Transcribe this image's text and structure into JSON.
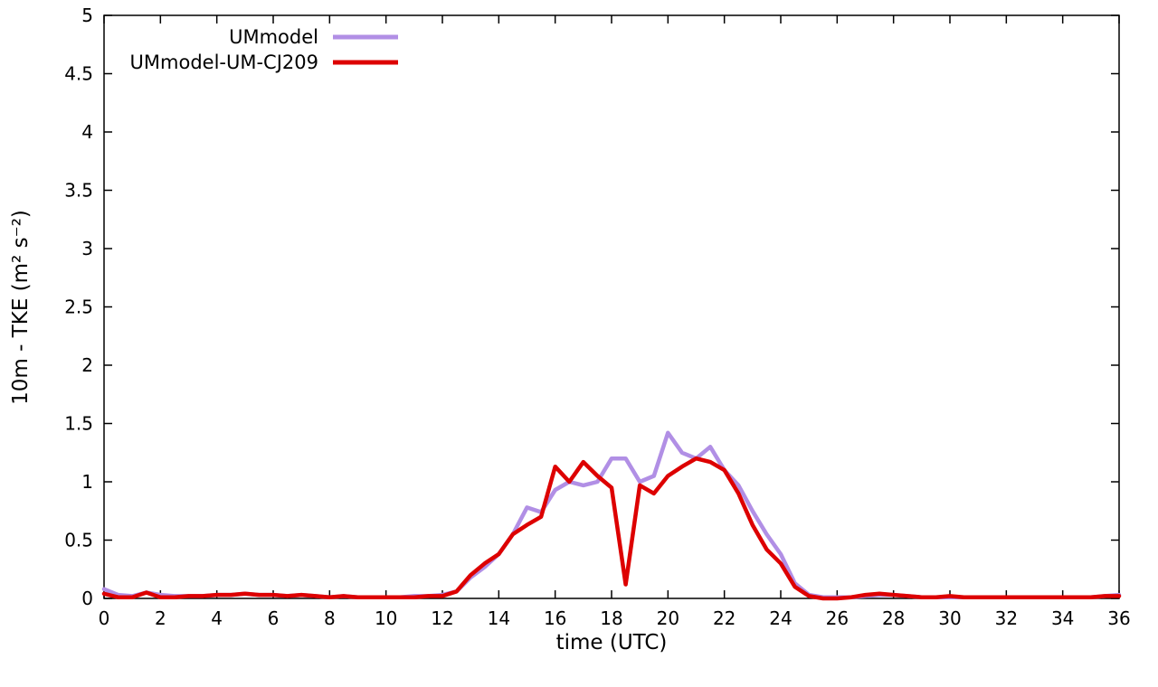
{
  "chart_data": {
    "type": "line",
    "title": "",
    "xlabel": "time (UTC)",
    "ylabel": "10m - TKE (m² s⁻²)",
    "xlim": [
      0,
      36
    ],
    "ylim": [
      0,
      5
    ],
    "xticks": [
      0,
      2,
      4,
      6,
      8,
      10,
      12,
      14,
      16,
      18,
      20,
      22,
      24,
      26,
      28,
      30,
      32,
      34,
      36
    ],
    "yticks": [
      0,
      0.5,
      1,
      1.5,
      2,
      2.5,
      3,
      3.5,
      4,
      4.5,
      5
    ],
    "grid": false,
    "legend_position": "top-left-inside",
    "background_color": "#ffffff",
    "border_color": "#000000",
    "x": [
      0,
      0.5,
      1,
      1.5,
      2,
      2.5,
      3,
      3.5,
      4,
      4.5,
      5,
      5.5,
      6,
      6.5,
      7,
      7.5,
      8,
      8.5,
      9,
      9.5,
      10,
      10.5,
      11,
      11.5,
      12,
      12.5,
      13,
      13.5,
      14,
      14.5,
      15,
      15.5,
      16,
      16.5,
      17,
      17.5,
      18,
      18.5,
      19,
      19.5,
      20,
      20.5,
      21,
      21.5,
      22,
      22.5,
      23,
      23.5,
      24,
      24.5,
      25,
      25.5,
      26,
      26.5,
      27,
      27.5,
      28,
      28.5,
      29,
      29.5,
      30,
      30.5,
      31,
      31.5,
      32,
      32.5,
      33,
      33.5,
      34,
      34.5,
      35,
      35.5,
      36
    ],
    "series": [
      {
        "name": "UMmodel",
        "color": "#b18fe5",
        "values": [
          0.08,
          0.03,
          0.02,
          0.05,
          0.03,
          0.02,
          0.02,
          0.02,
          0.03,
          0.03,
          0.04,
          0.03,
          0.03,
          0.02,
          0.03,
          0.02,
          0.01,
          0.02,
          0.01,
          0.01,
          0.01,
          0.01,
          0.02,
          0.02,
          0.03,
          0.06,
          0.18,
          0.27,
          0.38,
          0.55,
          0.78,
          0.74,
          0.93,
          1.0,
          0.97,
          1.0,
          1.2,
          1.2,
          1.0,
          1.05,
          1.42,
          1.25,
          1.2,
          1.3,
          1.1,
          0.97,
          0.75,
          0.55,
          0.38,
          0.13,
          0.03,
          0.01,
          0.01,
          0.01,
          0.02,
          0.03,
          0.03,
          0.02,
          0.01,
          0.01,
          0.01,
          0.01,
          0.01,
          0.01,
          0.01,
          0.01,
          0.01,
          0.01,
          0.01,
          0.01,
          0.01,
          0.02,
          0.03
        ]
      },
      {
        "name": "UMmodel-UM-CJ209",
        "color": "#dd0000",
        "values": [
          0.04,
          0.01,
          0.01,
          0.05,
          0.01,
          0.01,
          0.02,
          0.02,
          0.03,
          0.03,
          0.04,
          0.03,
          0.03,
          0.02,
          0.03,
          0.02,
          0.01,
          0.02,
          0.01,
          0.01,
          0.01,
          0.01,
          0.01,
          0.02,
          0.02,
          0.06,
          0.2,
          0.3,
          0.38,
          0.55,
          0.63,
          0.7,
          1.13,
          1.0,
          1.17,
          1.05,
          0.95,
          0.12,
          0.97,
          0.9,
          1.05,
          1.13,
          1.2,
          1.17,
          1.1,
          0.9,
          0.63,
          0.42,
          0.3,
          0.1,
          0.02,
          0.0,
          0.0,
          0.01,
          0.03,
          0.04,
          0.03,
          0.02,
          0.01,
          0.01,
          0.02,
          0.01,
          0.01,
          0.01,
          0.01,
          0.01,
          0.01,
          0.01,
          0.01,
          0.01,
          0.01,
          0.02,
          0.02
        ]
      }
    ]
  }
}
